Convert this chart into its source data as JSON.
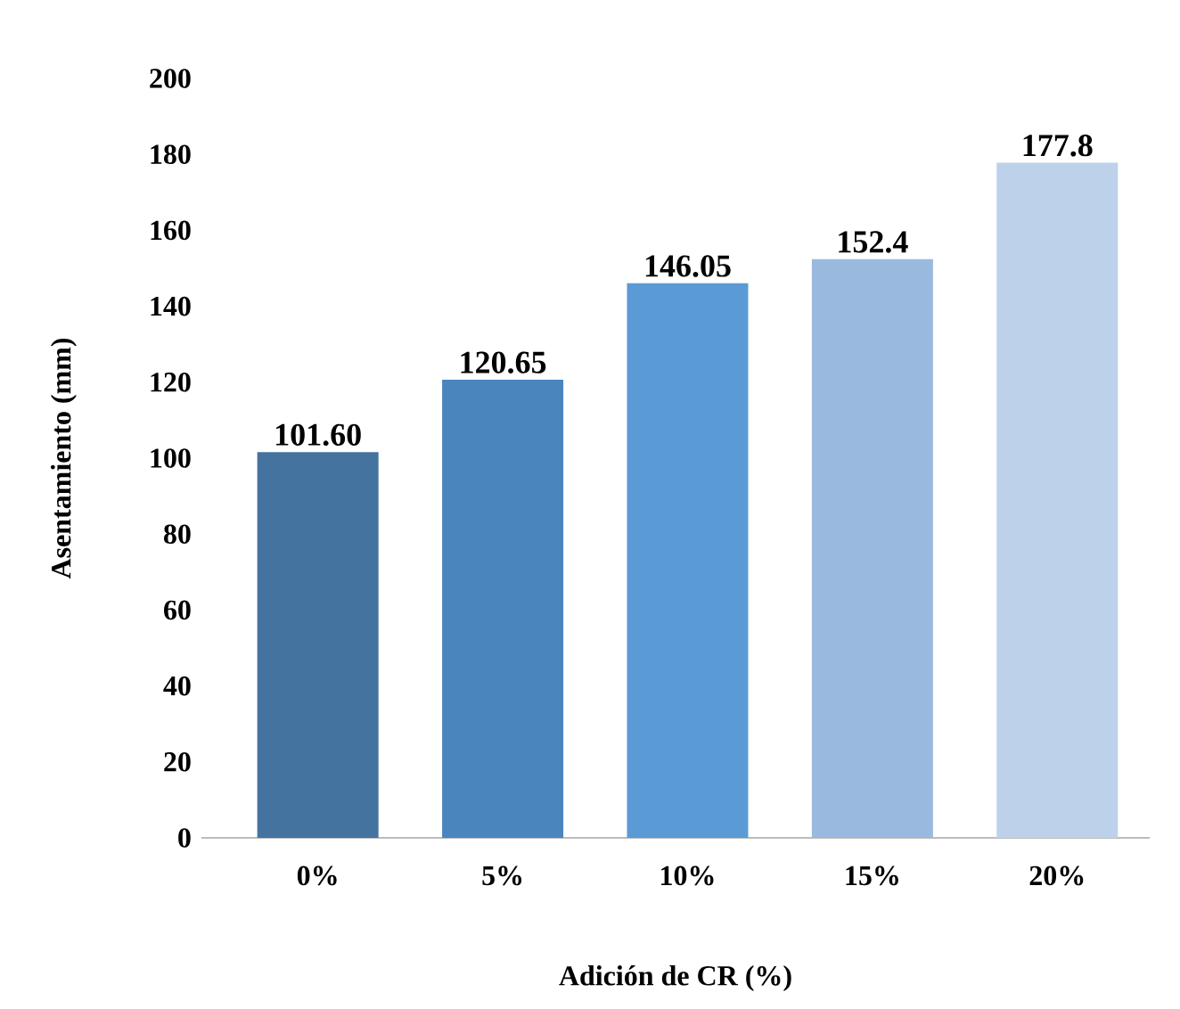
{
  "chart_data": {
    "type": "bar",
    "xlabel": "Adición de CR (%)",
    "ylabel": "Asentamiento (mm)",
    "categories": [
      "0%",
      "5%",
      "10%",
      "15%",
      "20%"
    ],
    "values": [
      101.6,
      120.65,
      146.05,
      152.4,
      177.8
    ],
    "value_labels": [
      "101.60",
      "120.65",
      "146.05",
      "152.4",
      "177.8"
    ],
    "colors": [
      "#44739f",
      "#4a86bd",
      "#5b9bd5",
      "#9ab9df",
      "#bdd1ea"
    ],
    "ylim": [
      0,
      200
    ],
    "yticks": [
      0,
      20,
      40,
      60,
      80,
      100,
      120,
      140,
      160,
      180,
      200
    ]
  }
}
